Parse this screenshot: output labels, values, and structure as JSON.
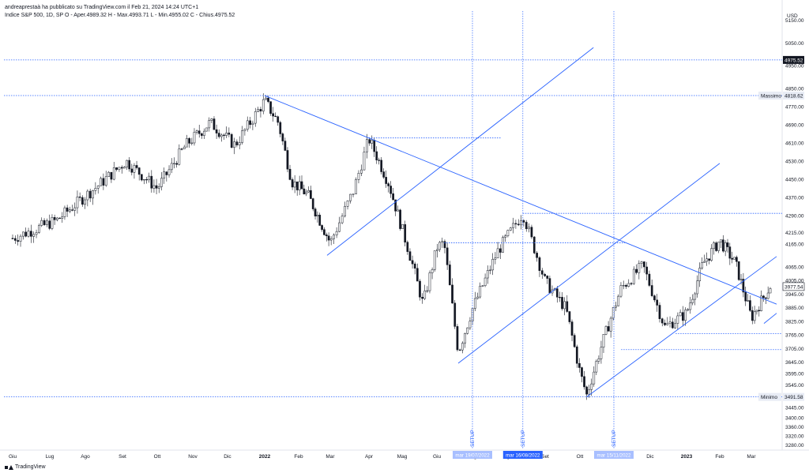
{
  "header": {
    "published_by": "andreaprestaà ha pubblicato su TradingView.com il Feb 21, 2024 14:24 UTC+1",
    "ohlc": "Indice S&P 500, 1D, SP   O - Aper.4989.32   H - Max.4993.71   L - Min.4955.02   C - Chius.4975.52"
  },
  "footer": {
    "brand": "TradingView"
  },
  "colors": {
    "trendline": "#2962ff",
    "candle_up": "#ffffff",
    "candle_down": "#131722",
    "hline": "#2962ff"
  },
  "chart_data": {
    "type": "candlestick",
    "currency_label": "USD",
    "y_ticks": [
      5150,
      5050,
      4950,
      4850,
      4770,
      4690,
      4610,
      4530,
      4450,
      4370,
      4290,
      4215,
      4165,
      4065,
      4005,
      3945,
      3885,
      3825,
      3765,
      3705,
      3645,
      3595,
      3545,
      3445,
      3400,
      3360,
      3320,
      3280
    ],
    "y_tick_labels": [
      "5150.00",
      "5050.00",
      "4950.00",
      "4850.00",
      "4770.00",
      "4690.00",
      "4610.00",
      "4530.00",
      "4450.00",
      "4370.00",
      "4290.00",
      "4215.00",
      "4165.00",
      "4065.00",
      "4005.00",
      "3945.00",
      "3885.00",
      "3825.00",
      "3765.00",
      "3705.00",
      "3645.00",
      "3595.00",
      "3545.00",
      "3445.00",
      "3400.00",
      "3360.00",
      "3320.00",
      "3280.00"
    ],
    "x_labels": [
      {
        "label": "Giu",
        "bold": false
      },
      {
        "label": "Lug",
        "bold": false
      },
      {
        "label": "Ago",
        "bold": false
      },
      {
        "label": "Set",
        "bold": false
      },
      {
        "label": "Ott",
        "bold": false
      },
      {
        "label": "Nov",
        "bold": false
      },
      {
        "label": "Dic",
        "bold": false
      },
      {
        "label": "2022",
        "bold": true
      },
      {
        "label": "Feb",
        "bold": false
      },
      {
        "label": "Mar",
        "bold": false
      },
      {
        "label": "Apr",
        "bold": false
      },
      {
        "label": "Mag",
        "bold": false
      },
      {
        "label": "Giu",
        "bold": false
      },
      {
        "label": "Lug",
        "bold": false
      },
      {
        "label": "Ago",
        "bold": false
      },
      {
        "label": "Set",
        "bold": false
      },
      {
        "label": "Ott",
        "bold": false
      },
      {
        "label": "Nov",
        "bold": false
      },
      {
        "label": "Dic",
        "bold": false
      },
      {
        "label": "2023",
        "bold": true
      },
      {
        "label": "Feb",
        "bold": false
      },
      {
        "label": "Mar",
        "bold": false
      }
    ],
    "price_labels": [
      {
        "name": "last",
        "value": 4975.52,
        "text": "4975.52",
        "style": "dark"
      },
      {
        "name": "massimo",
        "value": 4818.62,
        "text": "4818.62",
        "tag": "Massimo",
        "style": "light"
      },
      {
        "name": "current",
        "value": 3977.54,
        "text": "3977.54",
        "style": "outline"
      },
      {
        "name": "minimo",
        "value": 3491.58,
        "text": "3491.58",
        "tag": "Minimo",
        "style": "light"
      }
    ],
    "setup_text": "SETUP",
    "date_labels": [
      {
        "text": "mar 19/07/2022",
        "style": "light"
      },
      {
        "text": "mar 16/08/2022",
        "style": "dark"
      },
      {
        "text": "mar 15/11/2022",
        "style": "light"
      }
    ]
  }
}
